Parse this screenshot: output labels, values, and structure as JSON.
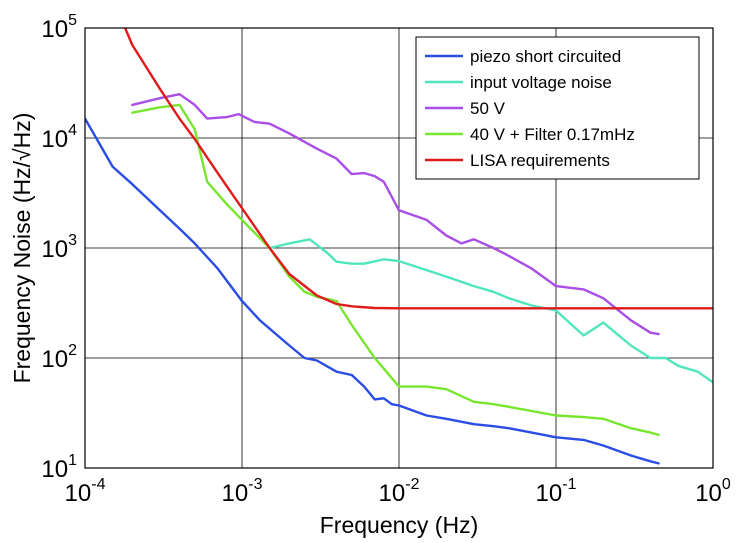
{
  "chart_data": {
    "type": "line",
    "title": "",
    "xlabel": "Frequency (Hz)",
    "ylabel": "Frequency Noise (Hz/√Hz)",
    "xscale": "log",
    "yscale": "log",
    "xlim": [
      0.0001,
      1
    ],
    "ylim": [
      10,
      100000
    ],
    "grid": true,
    "legend_position": "top-right",
    "x_ticks": [
      {
        "value": 0.0001,
        "base": "10",
        "exp": "-4"
      },
      {
        "value": 0.001,
        "base": "10",
        "exp": "-3"
      },
      {
        "value": 0.01,
        "base": "10",
        "exp": "-2"
      },
      {
        "value": 0.1,
        "base": "10",
        "exp": "-1"
      },
      {
        "value": 1,
        "base": "10",
        "exp": "0"
      }
    ],
    "y_ticks": [
      {
        "value": 10,
        "base": "10",
        "exp": "1"
      },
      {
        "value": 100,
        "base": "10",
        "exp": "2"
      },
      {
        "value": 1000,
        "base": "10",
        "exp": "3"
      },
      {
        "value": 10000,
        "base": "10",
        "exp": "4"
      },
      {
        "value": 100000,
        "base": "10",
        "exp": "5"
      }
    ],
    "series": [
      {
        "name": "piezo short circuited",
        "color": "#2a4de6",
        "points": [
          [
            0.0001,
            15000
          ],
          [
            0.00015,
            5500
          ],
          [
            0.0002,
            3800
          ],
          [
            0.0003,
            2200
          ],
          [
            0.0004,
            1500
          ],
          [
            0.0005,
            1100
          ],
          [
            0.0007,
            650
          ],
          [
            0.001,
            330
          ],
          [
            0.0013,
            220
          ],
          [
            0.002,
            130
          ],
          [
            0.0025,
            100
          ],
          [
            0.003,
            95
          ],
          [
            0.004,
            75
          ],
          [
            0.005,
            70
          ],
          [
            0.006,
            55
          ],
          [
            0.007,
            42
          ],
          [
            0.008,
            43
          ],
          [
            0.009,
            38
          ],
          [
            0.01,
            37
          ],
          [
            0.015,
            30
          ],
          [
            0.02,
            28
          ],
          [
            0.03,
            25
          ],
          [
            0.04,
            24
          ],
          [
            0.05,
            23
          ],
          [
            0.07,
            21
          ],
          [
            0.1,
            19
          ],
          [
            0.15,
            18
          ],
          [
            0.2,
            16
          ],
          [
            0.3,
            13
          ],
          [
            0.4,
            11.5
          ],
          [
            0.45,
            11
          ]
        ]
      },
      {
        "name": "input voltage noise",
        "color": "#50e6bc",
        "points": [
          [
            0.0015,
            1000
          ],
          [
            0.002,
            1100
          ],
          [
            0.0027,
            1200
          ],
          [
            0.0035,
            900
          ],
          [
            0.004,
            750
          ],
          [
            0.005,
            720
          ],
          [
            0.006,
            720
          ],
          [
            0.008,
            790
          ],
          [
            0.01,
            760
          ],
          [
            0.015,
            630
          ],
          [
            0.02,
            550
          ],
          [
            0.03,
            450
          ],
          [
            0.04,
            400
          ],
          [
            0.05,
            350
          ],
          [
            0.07,
            300
          ],
          [
            0.1,
            270
          ],
          [
            0.15,
            160
          ],
          [
            0.2,
            210
          ],
          [
            0.3,
            130
          ],
          [
            0.4,
            100
          ],
          [
            0.5,
            100
          ],
          [
            0.6,
            85
          ],
          [
            0.8,
            75
          ],
          [
            1,
            60
          ]
        ]
      },
      {
        "name": "50 V",
        "color": "#a94ee6",
        "points": [
          [
            0.0002,
            20000
          ],
          [
            0.0003,
            23000
          ],
          [
            0.0004,
            25000
          ],
          [
            0.0005,
            20000
          ],
          [
            0.0006,
            15000
          ],
          [
            0.0008,
            15500
          ],
          [
            0.00095,
            16500
          ],
          [
            0.0012,
            14000
          ],
          [
            0.0015,
            13500
          ],
          [
            0.002,
            11000
          ],
          [
            0.003,
            8000
          ],
          [
            0.004,
            6500
          ],
          [
            0.005,
            4700
          ],
          [
            0.006,
            4800
          ],
          [
            0.007,
            4500
          ],
          [
            0.008,
            4000
          ],
          [
            0.01,
            2200
          ],
          [
            0.015,
            1800
          ],
          [
            0.02,
            1300
          ],
          [
            0.025,
            1100
          ],
          [
            0.03,
            1200
          ],
          [
            0.04,
            1000
          ],
          [
            0.05,
            850
          ],
          [
            0.07,
            650
          ],
          [
            0.1,
            450
          ],
          [
            0.15,
            420
          ],
          [
            0.2,
            350
          ],
          [
            0.3,
            220
          ],
          [
            0.4,
            170
          ],
          [
            0.45,
            165
          ]
        ]
      },
      {
        "name": "40 V + Filter 0.17mHz",
        "color": "#78e62e",
        "points": [
          [
            0.0002,
            17000
          ],
          [
            0.0003,
            19000
          ],
          [
            0.0004,
            20000
          ],
          [
            0.0005,
            12000
          ],
          [
            0.0006,
            4000
          ],
          [
            0.0008,
            2500
          ],
          [
            0.001,
            1800
          ],
          [
            0.0015,
            1000
          ],
          [
            0.002,
            550
          ],
          [
            0.0025,
            400
          ],
          [
            0.003,
            360
          ],
          [
            0.004,
            330
          ],
          [
            0.005,
            200
          ],
          [
            0.007,
            100
          ],
          [
            0.008,
            80
          ],
          [
            0.01,
            55
          ],
          [
            0.015,
            55
          ],
          [
            0.02,
            52
          ],
          [
            0.03,
            40
          ],
          [
            0.04,
            38
          ],
          [
            0.05,
            36
          ],
          [
            0.07,
            33
          ],
          [
            0.1,
            30
          ],
          [
            0.15,
            29
          ],
          [
            0.2,
            28
          ],
          [
            0.3,
            23
          ],
          [
            0.4,
            21
          ],
          [
            0.45,
            20
          ]
        ]
      },
      {
        "name": "LISA requirements",
        "color": "#e01b1b",
        "points": [
          [
            0.00018,
            100000
          ],
          [
            0.0002,
            70000
          ],
          [
            0.0003,
            28000
          ],
          [
            0.0004,
            15000
          ],
          [
            0.0005,
            9800
          ],
          [
            0.0007,
            4800
          ],
          [
            0.001,
            2300
          ],
          [
            0.0015,
            1000
          ],
          [
            0.002,
            580
          ],
          [
            0.003,
            370
          ],
          [
            0.004,
            310
          ],
          [
            0.005,
            295
          ],
          [
            0.007,
            285
          ],
          [
            0.01,
            283
          ],
          [
            0.1,
            283
          ],
          [
            1,
            283
          ]
        ]
      }
    ]
  }
}
